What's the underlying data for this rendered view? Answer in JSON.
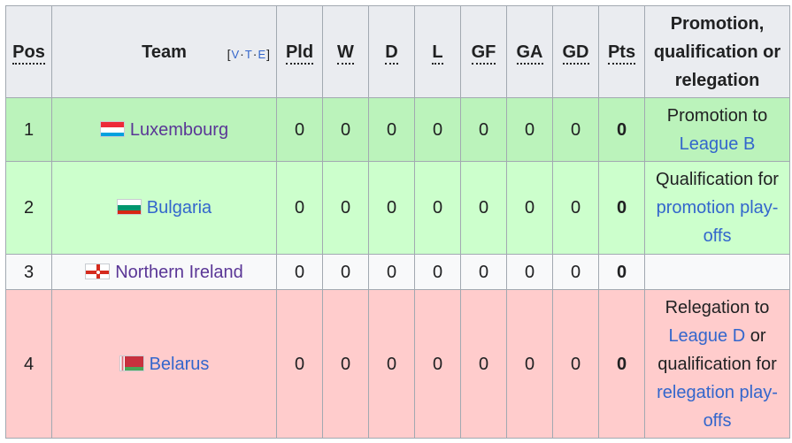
{
  "headers": {
    "pos": "Pos",
    "team": "Team",
    "vte_v": "V",
    "vte_t": "T",
    "vte_e": "E",
    "pld": "Pld",
    "w": "W",
    "d": "D",
    "l": "L",
    "gf": "GF",
    "ga": "GA",
    "gd": "GD",
    "pts": "Pts",
    "note_line1": "Promotion,",
    "note_line2": "qualification or",
    "note_line3": "relegation"
  },
  "rows": [
    {
      "pos": "1",
      "team": "Luxembourg",
      "flag": "luxembourg-flag",
      "pld": "0",
      "w": "0",
      "d": "0",
      "l": "0",
      "gf": "0",
      "ga": "0",
      "gd": "0",
      "pts": "0",
      "note_text1": "Promotion to",
      "note_link1": "League B",
      "row_color": "#bbf3bb"
    },
    {
      "pos": "2",
      "team": "Bulgaria",
      "flag": "bulgaria-flag",
      "pld": "0",
      "w": "0",
      "d": "0",
      "l": "0",
      "gf": "0",
      "ga": "0",
      "gd": "0",
      "pts": "0",
      "note_text1": "Qualification for",
      "note_link1": "promotion play-offs",
      "row_color": "#ccffcc"
    },
    {
      "pos": "3",
      "team": "Northern Ireland",
      "flag": "northern-ireland-flag",
      "pld": "0",
      "w": "0",
      "d": "0",
      "l": "0",
      "gf": "0",
      "ga": "0",
      "gd": "0",
      "pts": "0",
      "row_color": "#f8f9fa"
    },
    {
      "pos": "4",
      "team": "Belarus",
      "flag": "belarus-flag",
      "pld": "0",
      "w": "0",
      "d": "0",
      "l": "0",
      "gf": "0",
      "ga": "0",
      "gd": "0",
      "pts": "0",
      "note_text1": "Relegation to",
      "note_link1": "League D",
      "note_text2": "or",
      "note_text3": "qualification for",
      "note_link2": "relegation play-offs",
      "row_color": "#ffcccc"
    }
  ],
  "colors": {
    "header_bg": "#eaecf0",
    "border": "#a2a9b1",
    "link": "#3366cc",
    "visited_link": "#5a3696"
  }
}
